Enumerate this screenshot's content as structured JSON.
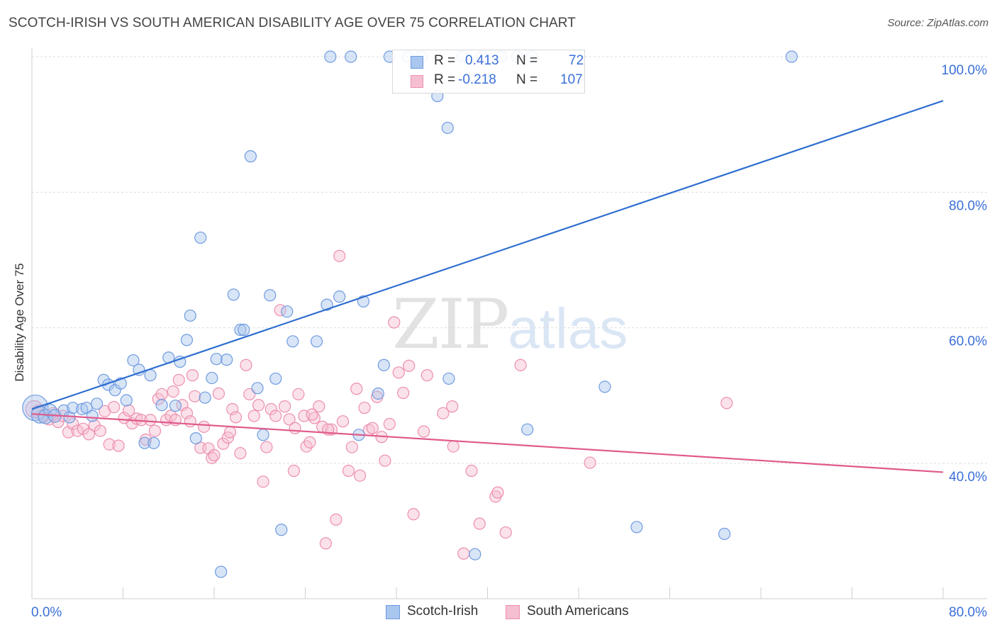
{
  "title": "SCOTCH-IRISH VS SOUTH AMERICAN DISABILITY AGE OVER 75 CORRELATION CHART",
  "source": "Source: ZipAtlas.com",
  "watermark": {
    "zip": "ZIP",
    "atlas": "atlas"
  },
  "stats": [
    {
      "r_label": "R =",
      "r_value": "0.413",
      "n_label": "N =",
      "n_value": "72"
    },
    {
      "r_label": "R =",
      "r_value": "-0.218",
      "n_label": "N =",
      "n_value": "107"
    }
  ],
  "legend": [
    {
      "label": "Scotch-Irish"
    },
    {
      "label": "South Americans"
    }
  ],
  "colors": {
    "blue_fill": "#a9c6ee",
    "blue_stroke": "#6f9be0",
    "blue_line": "#2f6fd0",
    "pink_fill": "#f6bfd1",
    "pink_stroke": "#ec8fae",
    "pink_line": "#e05a8c",
    "axis_label": "#3a6fd8",
    "grid": "#dcdcdc"
  },
  "chart_data": {
    "type": "scatter",
    "title": "SCOTCH-IRISH VS SOUTH AMERICAN DISABILITY AGE OVER 75 CORRELATION CHART",
    "xlabel": "",
    "ylabel": "Disability Age Over 75",
    "xlim": [
      0,
      80
    ],
    "ylim": [
      22,
      102
    ],
    "x_ticks": [
      {
        "value": 0,
        "label": "0.0%"
      },
      {
        "value": 80,
        "label": "80.0%"
      }
    ],
    "y_ticks": [
      {
        "value": 100,
        "label": "100.0%"
      },
      {
        "value": 80,
        "label": "80.0%"
      },
      {
        "value": 60,
        "label": "60.0%"
      },
      {
        "value": 40,
        "label": "40.0%"
      }
    ],
    "grid": true,
    "legend_position": "bottom",
    "series": [
      {
        "name": "Scotch-Irish",
        "color": "#a9c6ee",
        "r": 0.413,
        "n": 72,
        "trend": {
          "x": [
            0,
            80
          ],
          "y": [
            48.0,
            93.5
          ]
        },
        "points": [
          [
            0.3,
            48.2,
            18
          ],
          [
            0.7,
            47.2,
            12
          ],
          [
            1.2,
            46.9,
            10
          ],
          [
            1.6,
            47.8,
            9
          ],
          [
            2.0,
            47.0,
            9
          ],
          [
            2.8,
            47.8,
            8
          ],
          [
            3.3,
            46.8,
            8
          ],
          [
            3.6,
            48.2,
            8
          ],
          [
            4.4,
            48.0,
            8
          ],
          [
            4.8,
            48.2,
            8
          ],
          [
            5.3,
            47.0,
            8
          ],
          [
            5.7,
            48.8,
            8
          ],
          [
            6.3,
            52.3,
            8
          ],
          [
            6.7,
            51.6,
            8
          ],
          [
            7.3,
            50.8,
            8
          ],
          [
            7.8,
            51.8,
            8
          ],
          [
            8.3,
            49.3,
            8
          ],
          [
            8.9,
            55.2,
            8
          ],
          [
            9.4,
            53.8,
            8
          ],
          [
            9.9,
            43.0,
            8
          ],
          [
            10.4,
            53.0,
            8
          ],
          [
            10.7,
            43.0,
            8
          ],
          [
            11.4,
            48.6,
            8
          ],
          [
            12.0,
            55.6,
            8
          ],
          [
            12.6,
            48.5,
            8
          ],
          [
            13.0,
            55.0,
            8
          ],
          [
            13.6,
            58.2,
            8
          ],
          [
            13.9,
            61.8,
            8
          ],
          [
            14.4,
            43.7,
            8
          ],
          [
            14.8,
            73.3,
            8
          ],
          [
            15.2,
            49.7,
            8
          ],
          [
            15.8,
            52.6,
            8
          ],
          [
            16.2,
            55.4,
            8
          ],
          [
            16.6,
            24.0,
            8
          ],
          [
            17.1,
            55.3,
            8
          ],
          [
            17.7,
            64.9,
            8
          ],
          [
            18.3,
            59.7,
            8
          ],
          [
            18.6,
            59.7,
            8
          ],
          [
            19.2,
            85.3,
            8
          ],
          [
            19.8,
            51.1,
            8
          ],
          [
            20.3,
            44.2,
            8
          ],
          [
            20.9,
            64.8,
            8
          ],
          [
            21.4,
            52.5,
            8
          ],
          [
            21.9,
            30.2,
            8
          ],
          [
            22.4,
            62.4,
            8
          ],
          [
            22.9,
            58.0,
            8
          ],
          [
            25.0,
            58.0,
            8
          ],
          [
            25.9,
            63.4,
            8
          ],
          [
            26.2,
            100.0,
            8
          ],
          [
            27.0,
            64.6,
            8
          ],
          [
            28.0,
            100.0,
            8
          ],
          [
            28.7,
            44.2,
            8
          ],
          [
            29.1,
            63.9,
            8
          ],
          [
            30.4,
            50.3,
            8
          ],
          [
            30.9,
            54.5,
            8
          ],
          [
            31.4,
            100.0,
            8
          ],
          [
            33.0,
            100.0,
            8
          ],
          [
            34.2,
            100.0,
            8
          ],
          [
            35.6,
            94.2,
            8
          ],
          [
            36.5,
            89.5,
            8
          ],
          [
            36.6,
            52.5,
            8
          ],
          [
            38.9,
            26.6,
            8
          ],
          [
            37.8,
            100.0,
            8
          ],
          [
            41.2,
            100.0,
            8
          ],
          [
            42.6,
            100.0,
            8
          ],
          [
            43.5,
            45.0,
            8
          ],
          [
            50.3,
            51.3,
            8
          ],
          [
            53.1,
            30.6,
            8
          ],
          [
            60.8,
            29.6,
            8
          ],
          [
            66.7,
            100.0,
            8
          ],
          [
            39.5,
            100.0,
            8
          ],
          [
            43.9,
            100.0,
            8
          ]
        ]
      },
      {
        "name": "South Americans",
        "color": "#f6bfd1",
        "r": -0.218,
        "n": 107,
        "trend": {
          "x": [
            0,
            80
          ],
          "y": [
            47.3,
            38.7
          ]
        },
        "points": [
          [
            0.2,
            48.0,
            12
          ],
          [
            0.6,
            47.6,
            10
          ],
          [
            1.0,
            47.0,
            9
          ],
          [
            1.5,
            46.6,
            9
          ],
          [
            1.9,
            47.3,
            9
          ],
          [
            2.3,
            46.1,
            8
          ],
          [
            2.7,
            47.0,
            8
          ],
          [
            3.2,
            44.6,
            8
          ],
          [
            3.6,
            45.8,
            8
          ],
          [
            4.0,
            44.8,
            8
          ],
          [
            4.5,
            45.1,
            8
          ],
          [
            5.0,
            44.3,
            8
          ],
          [
            5.5,
            45.6,
            8
          ],
          [
            6.0,
            44.8,
            8
          ],
          [
            6.4,
            47.7,
            8
          ],
          [
            6.8,
            42.8,
            8
          ],
          [
            7.2,
            48.3,
            8
          ],
          [
            7.6,
            42.6,
            8
          ],
          [
            8.1,
            46.7,
            8
          ],
          [
            8.5,
            47.8,
            8
          ],
          [
            8.8,
            45.9,
            8
          ],
          [
            9.2,
            46.6,
            8
          ],
          [
            9.6,
            46.4,
            8
          ],
          [
            10.0,
            43.5,
            8
          ],
          [
            10.4,
            46.4,
            8
          ],
          [
            10.8,
            44.8,
            8
          ],
          [
            11.1,
            49.5,
            8
          ],
          [
            11.4,
            50.2,
            8
          ],
          [
            11.8,
            46.4,
            8
          ],
          [
            12.2,
            47.0,
            8
          ],
          [
            12.6,
            46.4,
            8
          ],
          [
            12.9,
            52.3,
            8
          ],
          [
            13.2,
            48.6,
            8
          ],
          [
            13.6,
            47.4,
            8
          ],
          [
            13.9,
            46.2,
            8
          ],
          [
            14.1,
            53.0,
            8
          ],
          [
            14.3,
            49.9,
            8
          ],
          [
            14.8,
            42.3,
            8
          ],
          [
            15.1,
            45.4,
            8
          ],
          [
            15.5,
            42.2,
            8
          ],
          [
            15.8,
            40.8,
            8
          ],
          [
            16.0,
            41.2,
            8
          ],
          [
            16.4,
            50.3,
            8
          ],
          [
            16.8,
            42.9,
            8
          ],
          [
            17.2,
            43.8,
            8
          ],
          [
            17.6,
            48.0,
            8
          ],
          [
            17.9,
            46.8,
            8
          ],
          [
            18.3,
            41.5,
            8
          ],
          [
            18.8,
            54.5,
            8
          ],
          [
            19.1,
            50.2,
            8
          ],
          [
            19.5,
            47.0,
            8
          ],
          [
            19.9,
            48.6,
            8
          ],
          [
            20.3,
            37.3,
            8
          ],
          [
            20.6,
            42.4,
            8
          ],
          [
            21.0,
            48.0,
            8
          ],
          [
            21.4,
            47.0,
            8
          ],
          [
            21.8,
            62.6,
            8
          ],
          [
            22.2,
            48.4,
            8
          ],
          [
            22.6,
            46.5,
            8
          ],
          [
            23.0,
            38.9,
            8
          ],
          [
            23.4,
            50.2,
            8
          ],
          [
            23.9,
            47.0,
            8
          ],
          [
            24.1,
            42.5,
            8
          ],
          [
            24.4,
            43.1,
            8
          ],
          [
            24.8,
            46.7,
            8
          ],
          [
            25.2,
            48.4,
            8
          ],
          [
            25.5,
            45.4,
            8
          ],
          [
            25.8,
            28.2,
            8
          ],
          [
            26.3,
            45.0,
            8
          ],
          [
            26.7,
            31.7,
            8
          ],
          [
            27.0,
            70.6,
            8
          ],
          [
            27.3,
            46.2,
            8
          ],
          [
            27.8,
            38.9,
            8
          ],
          [
            28.1,
            42.4,
            8
          ],
          [
            28.5,
            51.0,
            8
          ],
          [
            28.8,
            38.2,
            8
          ],
          [
            29.2,
            48.2,
            8
          ],
          [
            29.6,
            44.9,
            8
          ],
          [
            29.9,
            45.2,
            8
          ],
          [
            30.3,
            49.8,
            8
          ],
          [
            30.7,
            43.9,
            8
          ],
          [
            31.0,
            40.4,
            8
          ],
          [
            31.4,
            45.8,
            8
          ],
          [
            31.8,
            60.8,
            8
          ],
          [
            32.2,
            53.4,
            8
          ],
          [
            32.6,
            50.4,
            8
          ],
          [
            33.1,
            54.4,
            8
          ],
          [
            33.5,
            32.5,
            8
          ],
          [
            34.4,
            44.7,
            8
          ],
          [
            36.1,
            47.4,
            8
          ],
          [
            37.0,
            42.5,
            8
          ],
          [
            37.9,
            26.7,
            8
          ],
          [
            38.6,
            38.9,
            8
          ],
          [
            39.3,
            31.1,
            8
          ],
          [
            40.7,
            35.1,
            8
          ],
          [
            40.9,
            35.7,
            8
          ],
          [
            41.6,
            29.8,
            8
          ],
          [
            42.9,
            54.5,
            8
          ],
          [
            49.0,
            40.1,
            8
          ],
          [
            61.0,
            48.9,
            8
          ],
          [
            34.7,
            53.0,
            8
          ],
          [
            36.9,
            48.4,
            8
          ],
          [
            26.0,
            45.0,
            8
          ],
          [
            24.6,
            47.2,
            8
          ],
          [
            23.1,
            45.2,
            8
          ],
          [
            17.4,
            44.6,
            8
          ],
          [
            12.4,
            50.6,
            8
          ]
        ]
      }
    ]
  }
}
